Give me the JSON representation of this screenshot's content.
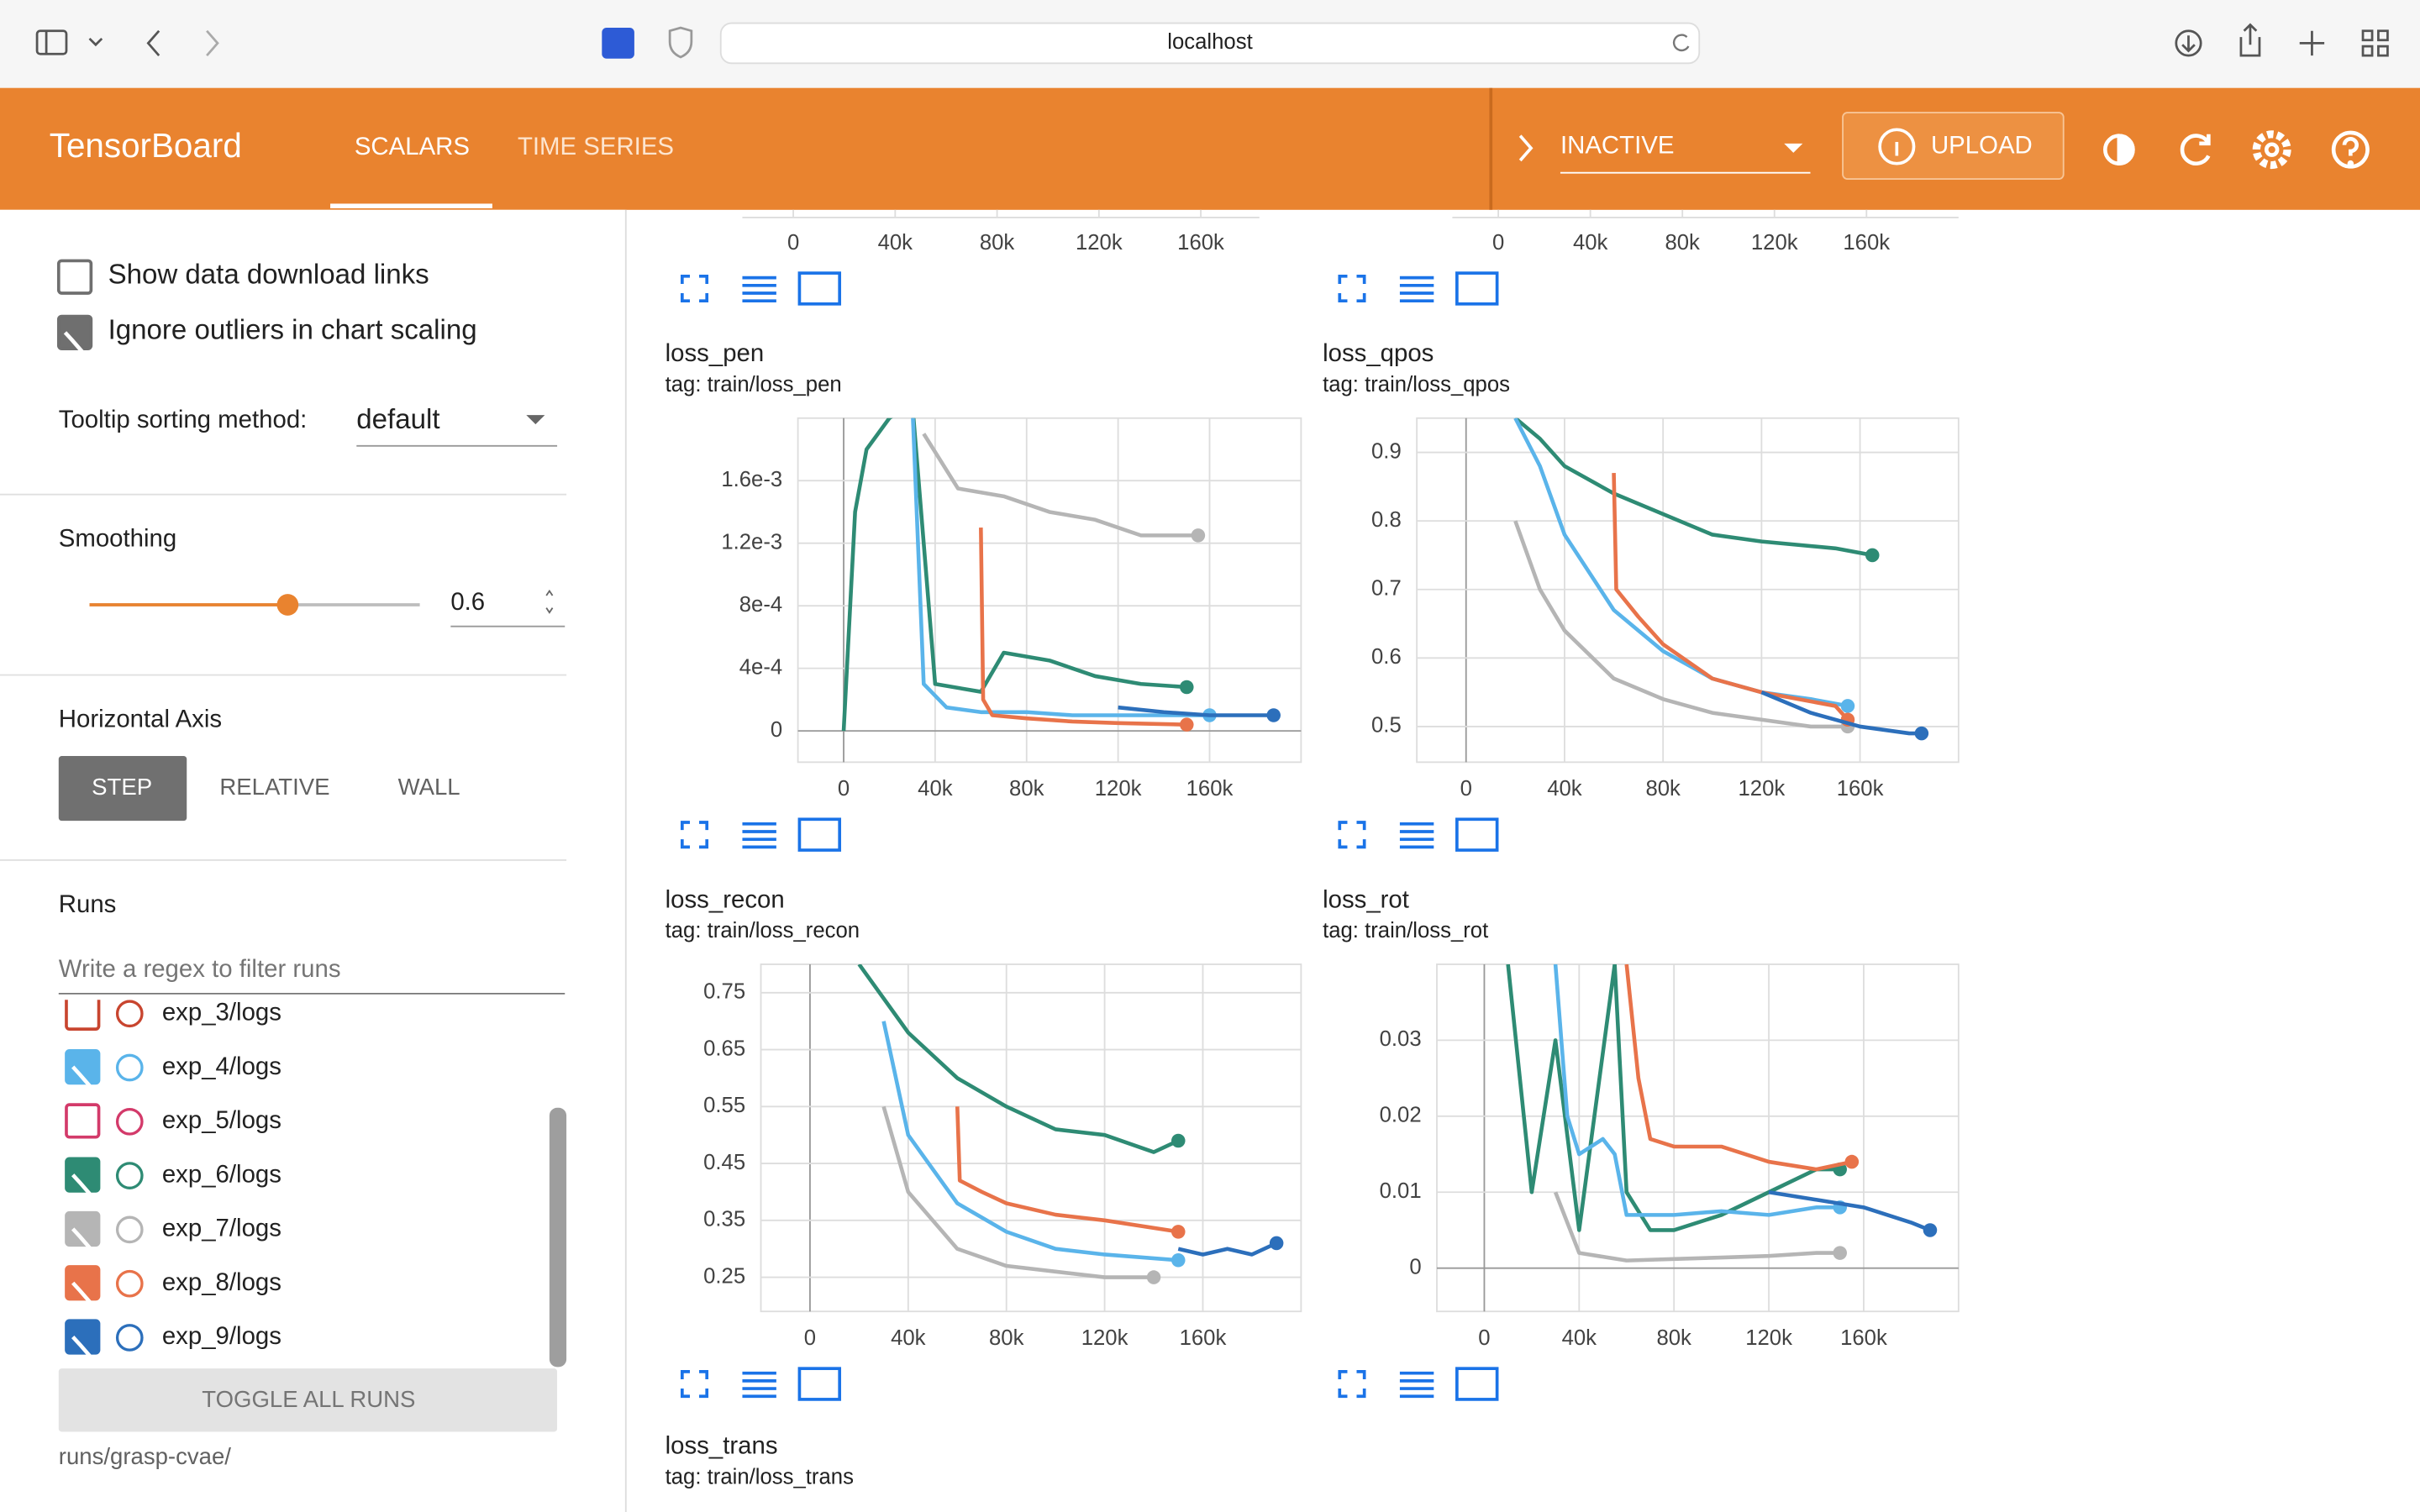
{
  "browser": {
    "url": "localhost"
  },
  "header": {
    "title": "TensorBoard",
    "tabs": [
      "SCALARS",
      "TIME SERIES"
    ],
    "status": "INACTIVE",
    "upload": "UPLOAD"
  },
  "sidebar": {
    "options": [
      {
        "label": "Show data download links",
        "checked": false
      },
      {
        "label": "Ignore outliers in chart scaling",
        "checked": true
      }
    ],
    "tooltip_label": "Tooltip sorting method:",
    "tooltip_value": "default",
    "smoothing_label": "Smoothing",
    "smoothing_value": 0.6,
    "axis_label": "Horizontal Axis",
    "axis_options": [
      "STEP",
      "RELATIVE",
      "WALL"
    ],
    "runs_label": "Runs",
    "filter_placeholder": "Write a regex to filter runs",
    "runs": [
      {
        "name": "exp_3/logs",
        "checked": false,
        "color": "#c8452f"
      },
      {
        "name": "exp_4/logs",
        "checked": true,
        "color": "#5ab4ea"
      },
      {
        "name": "exp_5/logs",
        "checked": false,
        "color": "#d33a6a"
      },
      {
        "name": "exp_6/logs",
        "checked": true,
        "color": "#2e8b74"
      },
      {
        "name": "exp_7/logs",
        "checked": true,
        "color": "#b5b5b5"
      },
      {
        "name": "exp_8/logs",
        "checked": true,
        "color": "#e8734a"
      },
      {
        "name": "exp_9/logs",
        "checked": true,
        "color": "#2c6fbb"
      }
    ],
    "toggle": "TOGGLE ALL RUNS",
    "footer": "runs/grasp-cvae/"
  },
  "top_axes": [
    {
      "xlim": [
        -20000,
        183000
      ],
      "xticks": [
        0,
        {
          "value": 40000,
          "label": "40k"
        },
        {
          "value": 80000,
          "label": "80k"
        },
        {
          "value": 120000,
          "label": "120k"
        },
        {
          "value": 160000,
          "label": "160k"
        }
      ]
    },
    {
      "xlim": [
        -20000,
        200000
      ],
      "xticks": [
        0,
        {
          "value": 40000,
          "label": "40k"
        },
        {
          "value": 80000,
          "label": "80k"
        },
        {
          "value": 120000,
          "label": "120k"
        },
        {
          "value": 160000,
          "label": "160k"
        }
      ]
    }
  ],
  "charts": [
    {
      "type": "line",
      "title": "loss_pen",
      "tag": "tag: train/loss_pen",
      "xlim": [
        -20000,
        200000
      ],
      "ylim": [
        -0.0002,
        0.002
      ],
      "xticks": [
        0,
        {
          "value": 40000,
          "label": "40k"
        },
        {
          "value": 80000,
          "label": "80k"
        },
        {
          "value": 120000,
          "label": "120k"
        },
        {
          "value": 160000,
          "label": "160k"
        }
      ],
      "yticks": [
        0,
        {
          "value": 0.0004,
          "label": "4e-4"
        },
        {
          "value": 0.0008,
          "label": "8e-4"
        },
        {
          "value": 0.0012,
          "label": "1.2e-3"
        },
        {
          "value": 0.0016,
          "label": "1.6e-3"
        }
      ],
      "series": [
        {
          "color": "#b5b5b5",
          "x": [
            35000,
            50000,
            70000,
            90000,
            110000,
            130000,
            155000
          ],
          "values": [
            0.0019,
            0.00155,
            0.0015,
            0.0014,
            0.00135,
            0.00125,
            0.00125
          ]
        },
        {
          "color": "#2e8b74",
          "x": [
            0,
            5000,
            10000,
            20000,
            30000,
            40000,
            60000,
            70000,
            90000,
            110000,
            130000,
            150000
          ],
          "values": [
            0,
            0.0014,
            0.0018,
            0.002,
            0.0021,
            0.0003,
            0.00025,
            0.0005,
            0.00045,
            0.00035,
            0.0003,
            0.00028
          ]
        },
        {
          "color": "#5ab4ea",
          "x": [
            30000,
            35000,
            45000,
            60000,
            80000,
            100000,
            120000,
            140000,
            160000
          ],
          "values": [
            0.0021,
            0.0003,
            0.00015,
            0.00012,
            0.00012,
            0.0001,
            0.0001,
            0.0001,
            0.0001
          ]
        },
        {
          "color": "#e8734a",
          "x": [
            60000,
            61000,
            65000,
            80000,
            100000,
            120000,
            150000
          ],
          "values": [
            0.0013,
            0.0002,
            0.0001,
            8e-05,
            6e-05,
            5e-05,
            4e-05
          ]
        },
        {
          "color": "#2c6fbb",
          "x": [
            120000,
            140000,
            160000,
            180000,
            188000
          ],
          "values": [
            0.00015,
            0.00012,
            0.0001,
            0.0001,
            0.0001
          ]
        }
      ]
    },
    {
      "type": "line",
      "title": "loss_qpos",
      "tag": "tag: train/loss_qpos",
      "xlim": [
        -20000,
        200000
      ],
      "ylim": [
        0.448,
        0.95
      ],
      "xticks": [
        0,
        {
          "value": 40000,
          "label": "40k"
        },
        {
          "value": 80000,
          "label": "80k"
        },
        {
          "value": 120000,
          "label": "120k"
        },
        {
          "value": 160000,
          "label": "160k"
        }
      ],
      "yticks": [
        0.5,
        0.6,
        0.7,
        0.8,
        0.9
      ],
      "series": [
        {
          "color": "#2e8b74",
          "x": [
            20000,
            30000,
            40000,
            60000,
            80000,
            100000,
            120000,
            150000,
            165000
          ],
          "values": [
            0.95,
            0.92,
            0.88,
            0.84,
            0.81,
            0.78,
            0.77,
            0.76,
            0.75
          ]
        },
        {
          "color": "#5ab4ea",
          "x": [
            20000,
            30000,
            40000,
            60000,
            80000,
            100000,
            120000,
            140000,
            155000
          ],
          "values": [
            0.95,
            0.88,
            0.78,
            0.67,
            0.61,
            0.57,
            0.55,
            0.54,
            0.53
          ]
        },
        {
          "color": "#b5b5b5",
          "x": [
            20000,
            30000,
            40000,
            60000,
            80000,
            100000,
            120000,
            140000,
            155000
          ],
          "values": [
            0.8,
            0.7,
            0.64,
            0.57,
            0.54,
            0.52,
            0.51,
            0.5,
            0.5
          ]
        },
        {
          "color": "#e8734a",
          "x": [
            60000,
            61000,
            70000,
            80000,
            100000,
            120000,
            150000,
            155000
          ],
          "values": [
            0.87,
            0.7,
            0.66,
            0.62,
            0.57,
            0.55,
            0.53,
            0.51
          ]
        },
        {
          "color": "#2c6fbb",
          "x": [
            120000,
            140000,
            160000,
            180000,
            185000
          ],
          "values": [
            0.55,
            0.52,
            0.5,
            0.49,
            0.49
          ]
        }
      ]
    },
    {
      "type": "line",
      "title": "loss_recon",
      "tag": "tag: train/loss_recon",
      "xlim": [
        -20000,
        200000
      ],
      "ylim": [
        0.19,
        0.8
      ],
      "xticks": [
        0,
        {
          "value": 40000,
          "label": "40k"
        },
        {
          "value": 80000,
          "label": "80k"
        },
        {
          "value": 120000,
          "label": "120k"
        },
        {
          "value": 160000,
          "label": "160k"
        }
      ],
      "yticks": [
        0.25,
        0.35,
        0.45,
        0.55,
        0.65,
        0.75
      ],
      "series": [
        {
          "color": "#2e8b74",
          "x": [
            20000,
            40000,
            60000,
            80000,
            100000,
            120000,
            140000,
            150000
          ],
          "values": [
            0.8,
            0.68,
            0.6,
            0.55,
            0.51,
            0.5,
            0.47,
            0.49
          ]
        },
        {
          "color": "#5ab4ea",
          "x": [
            30000,
            40000,
            60000,
            80000,
            100000,
            120000,
            150000
          ],
          "values": [
            0.7,
            0.5,
            0.38,
            0.33,
            0.3,
            0.29,
            0.28
          ]
        },
        {
          "color": "#b5b5b5",
          "x": [
            30000,
            40000,
            60000,
            80000,
            100000,
            120000,
            140000
          ],
          "values": [
            0.55,
            0.4,
            0.3,
            0.27,
            0.26,
            0.25,
            0.25
          ]
        },
        {
          "color": "#e8734a",
          "x": [
            60000,
            61000,
            70000,
            80000,
            100000,
            120000,
            150000
          ],
          "values": [
            0.55,
            0.42,
            0.4,
            0.38,
            0.36,
            0.35,
            0.33
          ]
        },
        {
          "color": "#2c6fbb",
          "x": [
            150000,
            160000,
            170000,
            180000,
            190000
          ],
          "values": [
            0.3,
            0.29,
            0.3,
            0.29,
            0.31
          ]
        }
      ]
    },
    {
      "type": "line",
      "title": "loss_rot",
      "tag": "tag: train/loss_rot",
      "xlim": [
        -20000,
        200000
      ],
      "ylim": [
        -0.0057,
        0.04
      ],
      "xticks": [
        0,
        {
          "value": 40000,
          "label": "40k"
        },
        {
          "value": 80000,
          "label": "80k"
        },
        {
          "value": 120000,
          "label": "120k"
        },
        {
          "value": 160000,
          "label": "160k"
        }
      ],
      "yticks": [
        0,
        0.01,
        0.02,
        0.03
      ],
      "series": [
        {
          "color": "#2e8b74",
          "x": [
            10000,
            20000,
            30000,
            40000,
            55000,
            60000,
            70000,
            80000,
            100000,
            120000,
            140000,
            150000
          ],
          "values": [
            0.04,
            0.01,
            0.03,
            0.005,
            0.04,
            0.01,
            0.005,
            0.005,
            0.007,
            0.01,
            0.013,
            0.013
          ]
        },
        {
          "color": "#5ab4ea",
          "x": [
            30000,
            35000,
            40000,
            50000,
            55000,
            60000,
            80000,
            100000,
            120000,
            140000,
            150000
          ],
          "values": [
            0.04,
            0.02,
            0.015,
            0.017,
            0.015,
            0.007,
            0.007,
            0.0075,
            0.007,
            0.008,
            0.008
          ]
        },
        {
          "color": "#b5b5b5",
          "x": [
            30000,
            40000,
            60000,
            80000,
            100000,
            120000,
            140000,
            150000
          ],
          "values": [
            0.01,
            0.002,
            0.001,
            0.0012,
            0.0014,
            0.0016,
            0.002,
            0.002
          ]
        },
        {
          "color": "#e8734a",
          "x": [
            60000,
            65000,
            70000,
            80000,
            100000,
            120000,
            140000,
            155000
          ],
          "values": [
            0.04,
            0.025,
            0.017,
            0.016,
            0.016,
            0.014,
            0.013,
            0.014
          ]
        },
        {
          "color": "#2c6fbb",
          "x": [
            120000,
            140000,
            160000,
            180000,
            188000
          ],
          "values": [
            0.01,
            0.009,
            0.008,
            0.006,
            0.005
          ]
        }
      ]
    },
    {
      "title": "loss_trans",
      "tag": "tag: train/loss_trans"
    }
  ]
}
